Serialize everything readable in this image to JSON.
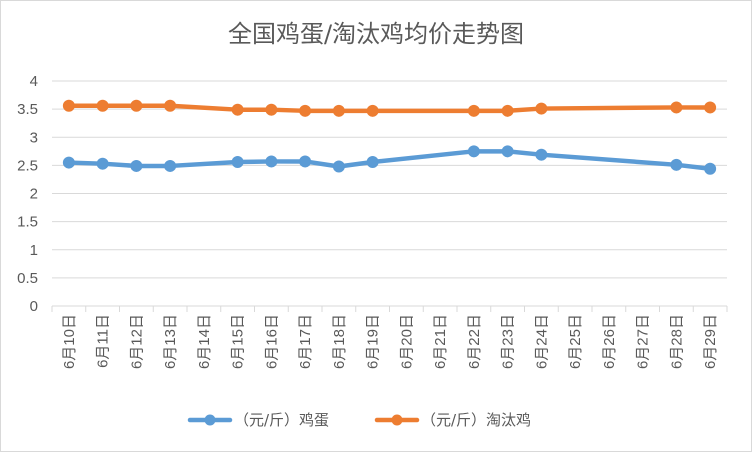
{
  "chart_data": {
    "type": "line",
    "title": "全国鸡蛋/淘汰鸡均价走势图",
    "categories": [
      "6月10日",
      "6月11日",
      "6月12日",
      "6月13日",
      "6月14日",
      "6月15日",
      "6月16日",
      "6月17日",
      "6月18日",
      "6月19日",
      "6月20日",
      "6月21日",
      "6月22日",
      "6月23日",
      "6月24日",
      "6月25日",
      "6月26日",
      "6月27日",
      "6月28日",
      "6月29日"
    ],
    "ylim": [
      0,
      4
    ],
    "yticks": [
      "0",
      "0.5",
      "1",
      "1.5",
      "2",
      "2.5",
      "3",
      "3.5",
      "4"
    ],
    "grid": true,
    "legend_position": "bottom",
    "series": [
      {
        "name": "（元/斤）鸡蛋",
        "color": "#5B9BD5",
        "values": [
          2.55,
          2.53,
          2.49,
          2.49,
          null,
          2.56,
          2.57,
          2.57,
          2.48,
          2.56,
          null,
          null,
          2.75,
          2.75,
          2.69,
          null,
          null,
          null,
          2.51,
          2.44
        ]
      },
      {
        "name": "（元/斤）淘汰鸡",
        "color": "#ED7D31",
        "values": [
          3.56,
          3.56,
          3.56,
          3.56,
          null,
          3.49,
          3.49,
          3.47,
          3.47,
          3.47,
          null,
          null,
          3.47,
          3.47,
          3.51,
          null,
          null,
          null,
          3.53,
          3.53
        ]
      }
    ]
  }
}
